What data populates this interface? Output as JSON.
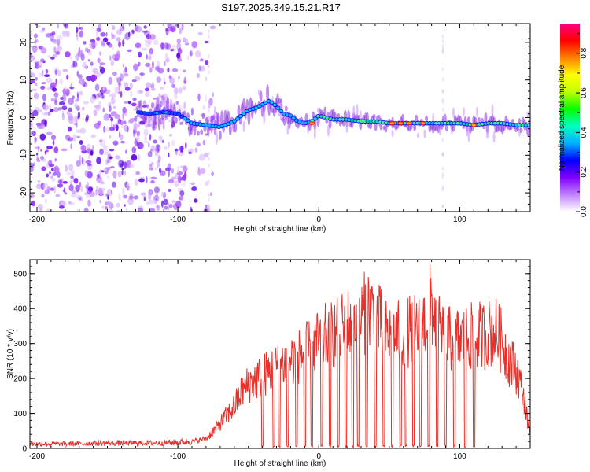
{
  "figure_title": "S197.2025.349.15.21.R17",
  "chart_data": [
    {
      "type": "heatmap",
      "title": "S197.2025.349.15.21.R17",
      "xlabel": "Height of straight line (km)",
      "ylabel": "Frequency (Hz)",
      "xlim": [
        -205,
        150
      ],
      "ylim": [
        -25,
        25
      ],
      "x_ticks": [
        -200,
        -100,
        0,
        100
      ],
      "y_ticks": [
        -20,
        -10,
        0,
        10,
        20
      ],
      "colorbar": {
        "label": "Normalized spectral amplitude",
        "range": [
          0.0,
          0.95
        ],
        "ticks": [
          0.0,
          0.2,
          0.4,
          0.6,
          0.8
        ],
        "colors": [
          "#ffffff",
          "#c080ff",
          "#8000ff",
          "#0000ff",
          "#00b0ff",
          "#00ffc0",
          "#00ff00",
          "#c0ff00",
          "#ffff00",
          "#ff8000",
          "#ff0000",
          "#ff0080"
        ]
      },
      "ridge": {
        "x": [
          -130,
          -120,
          -110,
          -100,
          -90,
          -80,
          -70,
          -60,
          -50,
          -45,
          -40,
          -35,
          -30,
          -25,
          -20,
          -15,
          -10,
          -5,
          0,
          10,
          20,
          30,
          40,
          50,
          60,
          70,
          80,
          90,
          100,
          110,
          120,
          130,
          140,
          150
        ],
        "y": [
          1.5,
          1.0,
          1.5,
          1.0,
          -1.5,
          -2.0,
          -2.5,
          -1.0,
          2.0,
          2.5,
          3.5,
          4.5,
          3.0,
          1.0,
          0.5,
          -1.0,
          -1.5,
          -1.0,
          0.5,
          -0.5,
          -0.5,
          -1.0,
          -1.0,
          -1.5,
          -1.5,
          -1.5,
          -1.5,
          -1.5,
          -1.5,
          -2.0,
          -1.5,
          -1.5,
          -2.0,
          -2.0
        ]
      }
    },
    {
      "type": "line",
      "xlabel": "Height of straight line (km)",
      "ylabel": "SNR (10 * v/v)",
      "xlim": [
        -205,
        150
      ],
      "ylim": [
        0,
        540
      ],
      "x_ticks": [
        -200,
        -100,
        0,
        100
      ],
      "y_ticks": [
        0,
        100,
        200,
        300,
        400,
        500
      ],
      "line_color": "#e8302a",
      "envelope": {
        "x": [
          -205,
          -180,
          -150,
          -120,
          -100,
          -90,
          -80,
          -75,
          -70,
          -60,
          -55,
          -50,
          -40,
          -30,
          -20,
          -10,
          0,
          5,
          10,
          20,
          30,
          35,
          40,
          45,
          50,
          60,
          70,
          75,
          80,
          85,
          90,
          100,
          110,
          120,
          125,
          130,
          135,
          140,
          145,
          148,
          150
        ],
        "y": [
          15,
          15,
          18,
          18,
          20,
          25,
          35,
          60,
          90,
          150,
          200,
          230,
          260,
          290,
          320,
          340,
          380,
          400,
          410,
          440,
          470,
          500,
          480,
          430,
          400,
          410,
          430,
          450,
          520,
          420,
          390,
          390,
          400,
          410,
          420,
          380,
          320,
          280,
          200,
          100,
          60
        ]
      }
    }
  ]
}
